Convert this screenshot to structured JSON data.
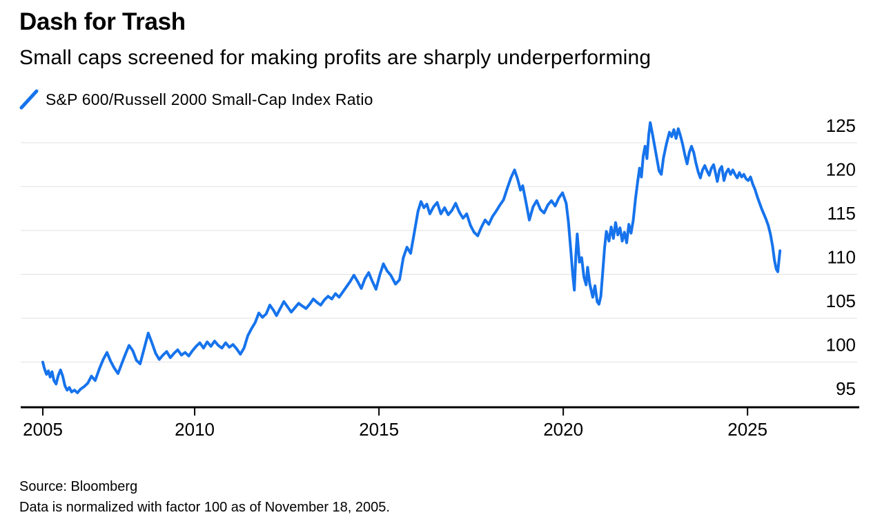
{
  "chart_data": {
    "type": "line",
    "title": "Dash for Trash",
    "subtitle": "Small caps screened for making profits are sharply underperforming",
    "legend": [
      {
        "label": "S&P 600/Russell 2000 Small-Cap Index Ratio",
        "color": "#1673EC",
        "marker": "slash"
      }
    ],
    "source": "Source: Bloomberg",
    "note": "Data is normalized with factor 100 as of November 18, 2005.",
    "grid": "horizontal",
    "x_axis": {
      "ticks": [
        {
          "label": "2005",
          "year": 2005.88
        },
        {
          "label": "2010",
          "year": 2010
        },
        {
          "label": "2015",
          "year": 2015
        },
        {
          "label": "2020",
          "year": 2020
        },
        {
          "label": "2025",
          "year": 2025
        }
      ],
      "range_years": [
        2005.28,
        2028.03
      ]
    },
    "y_axis": {
      "ticks": [
        95,
        100,
        105,
        110,
        115,
        120,
        125
      ],
      "range": [
        94.85,
        127.9
      ],
      "side": "right"
    },
    "colors": {
      "line": "#1673EC",
      "grid": "#e1e1e1",
      "axis": "#000000",
      "text": "#000000"
    },
    "series": [
      {
        "name": "S&P 600/Russell 2000 Small-Cap Index Ratio",
        "color": "#1673EC",
        "points": [
          [
            2005.88,
            100.0
          ],
          [
            2005.92,
            99.3
          ],
          [
            2005.98,
            98.6
          ],
          [
            2006.03,
            99.0
          ],
          [
            2006.08,
            98.3
          ],
          [
            2006.13,
            98.9
          ],
          [
            2006.18,
            97.9
          ],
          [
            2006.24,
            97.5
          ],
          [
            2006.3,
            98.5
          ],
          [
            2006.36,
            99.1
          ],
          [
            2006.42,
            98.4
          ],
          [
            2006.48,
            97.3
          ],
          [
            2006.54,
            96.8
          ],
          [
            2006.6,
            97.1
          ],
          [
            2006.66,
            96.6
          ],
          [
            2006.74,
            96.8
          ],
          [
            2006.82,
            96.5
          ],
          [
            2006.9,
            96.9
          ],
          [
            2007.0,
            97.2
          ],
          [
            2007.1,
            97.6
          ],
          [
            2007.2,
            98.4
          ],
          [
            2007.3,
            97.9
          ],
          [
            2007.42,
            99.3
          ],
          [
            2007.52,
            100.3
          ],
          [
            2007.62,
            101.1
          ],
          [
            2007.72,
            100.1
          ],
          [
            2007.82,
            99.3
          ],
          [
            2007.92,
            98.7
          ],
          [
            2008.02,
            99.8
          ],
          [
            2008.12,
            100.9
          ],
          [
            2008.22,
            101.9
          ],
          [
            2008.32,
            101.3
          ],
          [
            2008.42,
            100.2
          ],
          [
            2008.52,
            99.8
          ],
          [
            2008.62,
            101.4
          ],
          [
            2008.74,
            103.3
          ],
          [
            2008.84,
            102.2
          ],
          [
            2008.94,
            101.0
          ],
          [
            2009.04,
            100.3
          ],
          [
            2009.14,
            100.8
          ],
          [
            2009.24,
            101.2
          ],
          [
            2009.34,
            100.5
          ],
          [
            2009.44,
            101.0
          ],
          [
            2009.54,
            101.4
          ],
          [
            2009.64,
            100.8
          ],
          [
            2009.74,
            101.1
          ],
          [
            2009.84,
            100.7
          ],
          [
            2009.94,
            101.3
          ],
          [
            2010.04,
            101.8
          ],
          [
            2010.14,
            102.2
          ],
          [
            2010.24,
            101.6
          ],
          [
            2010.34,
            102.3
          ],
          [
            2010.44,
            101.8
          ],
          [
            2010.54,
            102.4
          ],
          [
            2010.64,
            101.9
          ],
          [
            2010.74,
            101.6
          ],
          [
            2010.84,
            102.2
          ],
          [
            2010.94,
            101.7
          ],
          [
            2011.04,
            102.0
          ],
          [
            2011.14,
            101.5
          ],
          [
            2011.24,
            100.9
          ],
          [
            2011.34,
            101.6
          ],
          [
            2011.44,
            103.0
          ],
          [
            2011.54,
            103.8
          ],
          [
            2011.64,
            104.5
          ],
          [
            2011.74,
            105.6
          ],
          [
            2011.84,
            105.1
          ],
          [
            2011.94,
            105.5
          ],
          [
            2012.04,
            106.5
          ],
          [
            2012.14,
            105.9
          ],
          [
            2012.22,
            105.3
          ],
          [
            2012.32,
            106.1
          ],
          [
            2012.42,
            106.9
          ],
          [
            2012.52,
            106.3
          ],
          [
            2012.62,
            105.7
          ],
          [
            2012.72,
            106.2
          ],
          [
            2012.82,
            106.7
          ],
          [
            2012.92,
            106.4
          ],
          [
            2013.02,
            106.1
          ],
          [
            2013.12,
            106.6
          ],
          [
            2013.22,
            107.2
          ],
          [
            2013.32,
            106.8
          ],
          [
            2013.42,
            106.5
          ],
          [
            2013.52,
            107.1
          ],
          [
            2013.62,
            107.5
          ],
          [
            2013.72,
            107.2
          ],
          [
            2013.82,
            107.8
          ],
          [
            2013.92,
            107.4
          ],
          [
            2014.02,
            108.0
          ],
          [
            2014.12,
            108.6
          ],
          [
            2014.22,
            109.2
          ],
          [
            2014.32,
            109.9
          ],
          [
            2014.42,
            109.2
          ],
          [
            2014.52,
            108.4
          ],
          [
            2014.62,
            109.5
          ],
          [
            2014.72,
            110.2
          ],
          [
            2014.82,
            109.2
          ],
          [
            2014.92,
            108.3
          ],
          [
            2015.02,
            109.9
          ],
          [
            2015.12,
            111.2
          ],
          [
            2015.22,
            110.4
          ],
          [
            2015.32,
            109.9
          ],
          [
            2015.45,
            108.9
          ],
          [
            2015.56,
            109.4
          ],
          [
            2015.66,
            111.9
          ],
          [
            2015.76,
            113.1
          ],
          [
            2015.86,
            112.4
          ],
          [
            2015.96,
            114.8
          ],
          [
            2016.06,
            117.2
          ],
          [
            2016.14,
            118.3
          ],
          [
            2016.22,
            117.6
          ],
          [
            2016.3,
            118.0
          ],
          [
            2016.38,
            116.9
          ],
          [
            2016.48,
            117.7
          ],
          [
            2016.58,
            118.2
          ],
          [
            2016.68,
            116.9
          ],
          [
            2016.78,
            117.6
          ],
          [
            2016.88,
            116.8
          ],
          [
            2016.98,
            117.3
          ],
          [
            2017.08,
            118.1
          ],
          [
            2017.18,
            117.1
          ],
          [
            2017.28,
            116.4
          ],
          [
            2017.38,
            116.9
          ],
          [
            2017.48,
            115.6
          ],
          [
            2017.58,
            114.8
          ],
          [
            2017.68,
            114.4
          ],
          [
            2017.78,
            115.4
          ],
          [
            2017.88,
            116.2
          ],
          [
            2017.98,
            115.7
          ],
          [
            2018.08,
            116.6
          ],
          [
            2018.18,
            117.2
          ],
          [
            2018.28,
            117.9
          ],
          [
            2018.38,
            118.5
          ],
          [
            2018.48,
            119.8
          ],
          [
            2018.58,
            121.0
          ],
          [
            2018.68,
            121.9
          ],
          [
            2018.76,
            120.9
          ],
          [
            2018.84,
            119.6
          ],
          [
            2018.9,
            120.1
          ],
          [
            2018.98,
            118.4
          ],
          [
            2019.08,
            116.2
          ],
          [
            2019.18,
            117.7
          ],
          [
            2019.28,
            118.4
          ],
          [
            2019.38,
            117.4
          ],
          [
            2019.48,
            117.0
          ],
          [
            2019.58,
            117.9
          ],
          [
            2019.68,
            118.4
          ],
          [
            2019.78,
            117.8
          ],
          [
            2019.88,
            118.7
          ],
          [
            2019.98,
            119.3
          ],
          [
            2020.08,
            118.1
          ],
          [
            2020.14,
            116.0
          ],
          [
            2020.2,
            113.0
          ],
          [
            2020.26,
            109.9
          ],
          [
            2020.3,
            108.2
          ],
          [
            2020.34,
            112.0
          ],
          [
            2020.38,
            114.6
          ],
          [
            2020.44,
            111.4
          ],
          [
            2020.5,
            111.9
          ],
          [
            2020.56,
            109.7
          ],
          [
            2020.62,
            108.8
          ],
          [
            2020.66,
            110.8
          ],
          [
            2020.72,
            108.9
          ],
          [
            2020.8,
            107.4
          ],
          [
            2020.86,
            108.7
          ],
          [
            2020.92,
            106.9
          ],
          [
            2020.97,
            106.6
          ],
          [
            2021.02,
            107.5
          ],
          [
            2021.07,
            110.2
          ],
          [
            2021.12,
            113.0
          ],
          [
            2021.17,
            114.9
          ],
          [
            2021.24,
            113.8
          ],
          [
            2021.3,
            115.4
          ],
          [
            2021.36,
            114.1
          ],
          [
            2021.42,
            115.9
          ],
          [
            2021.48,
            114.5
          ],
          [
            2021.54,
            115.3
          ],
          [
            2021.6,
            113.8
          ],
          [
            2021.66,
            114.8
          ],
          [
            2021.72,
            113.6
          ],
          [
            2021.78,
            115.7
          ],
          [
            2021.84,
            114.7
          ],
          [
            2021.9,
            116.2
          ],
          [
            2021.96,
            118.6
          ],
          [
            2022.02,
            120.6
          ],
          [
            2022.07,
            122.1
          ],
          [
            2022.12,
            121.1
          ],
          [
            2022.17,
            123.5
          ],
          [
            2022.22,
            124.6
          ],
          [
            2022.27,
            123.2
          ],
          [
            2022.32,
            125.9
          ],
          [
            2022.36,
            127.3
          ],
          [
            2022.42,
            126.0
          ],
          [
            2022.48,
            124.6
          ],
          [
            2022.54,
            123.2
          ],
          [
            2022.6,
            121.8
          ],
          [
            2022.66,
            121.4
          ],
          [
            2022.72,
            123.3
          ],
          [
            2022.8,
            124.9
          ],
          [
            2022.88,
            126.2
          ],
          [
            2022.94,
            125.7
          ],
          [
            2023.0,
            126.5
          ],
          [
            2023.06,
            125.5
          ],
          [
            2023.12,
            126.6
          ],
          [
            2023.18,
            125.8
          ],
          [
            2023.24,
            124.8
          ],
          [
            2023.3,
            123.6
          ],
          [
            2023.36,
            122.6
          ],
          [
            2023.42,
            123.9
          ],
          [
            2023.48,
            124.6
          ],
          [
            2023.54,
            123.9
          ],
          [
            2023.6,
            122.7
          ],
          [
            2023.66,
            121.7
          ],
          [
            2023.72,
            121.0
          ],
          [
            2023.78,
            121.9
          ],
          [
            2023.84,
            122.4
          ],
          [
            2023.9,
            121.8
          ],
          [
            2023.96,
            121.3
          ],
          [
            2024.02,
            122.1
          ],
          [
            2024.08,
            122.5
          ],
          [
            2024.14,
            121.4
          ],
          [
            2024.18,
            120.6
          ],
          [
            2024.24,
            121.9
          ],
          [
            2024.3,
            122.3
          ],
          [
            2024.36,
            120.7
          ],
          [
            2024.42,
            121.6
          ],
          [
            2024.48,
            122.0
          ],
          [
            2024.54,
            121.4
          ],
          [
            2024.6,
            121.9
          ],
          [
            2024.66,
            121.4
          ],
          [
            2024.72,
            121.0
          ],
          [
            2024.78,
            121.6
          ],
          [
            2024.84,
            121.1
          ],
          [
            2024.9,
            121.4
          ],
          [
            2024.96,
            120.9
          ],
          [
            2025.02,
            120.7
          ],
          [
            2025.08,
            121.1
          ],
          [
            2025.14,
            120.3
          ],
          [
            2025.2,
            119.7
          ],
          [
            2025.26,
            118.9
          ],
          [
            2025.32,
            118.2
          ],
          [
            2025.38,
            117.5
          ],
          [
            2025.44,
            116.9
          ],
          [
            2025.5,
            116.3
          ],
          [
            2025.56,
            115.6
          ],
          [
            2025.62,
            114.6
          ],
          [
            2025.68,
            113.2
          ],
          [
            2025.73,
            111.6
          ],
          [
            2025.78,
            110.6
          ],
          [
            2025.82,
            110.3
          ],
          [
            2025.86,
            111.9
          ],
          [
            2025.88,
            112.7
          ]
        ]
      }
    ]
  }
}
